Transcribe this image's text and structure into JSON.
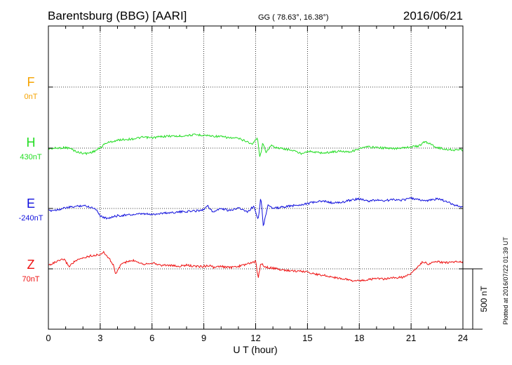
{
  "header": {
    "station": "Barentsburg (BBG)  [AARI]",
    "coords": "GG ( 78.63°,  16.38°)",
    "date": "2016/06/21"
  },
  "footer": {
    "plotted": "Plotted at 2016/07/22 01:39 UT"
  },
  "chart_data": {
    "type": "line",
    "title": "Barentsburg (BBG)  [AARI]",
    "xlabel": "U T (hour)",
    "xlim": [
      0,
      24
    ],
    "xticks": [
      "0",
      "3",
      "6",
      "9",
      "12",
      "15",
      "18",
      "21",
      "24"
    ],
    "grid": true,
    "scale_bar": "500 nT",
    "series": [
      {
        "name": "F",
        "baseline": "0nT",
        "color": "#f5a300",
        "x": [],
        "y": []
      },
      {
        "name": "H",
        "baseline": "430nT",
        "color": "#22dd22",
        "x": [
          0,
          0.5,
          1,
          1.3,
          1.7,
          2.2,
          2.6,
          3.0,
          3.3,
          3.7,
          4.2,
          4.8,
          5.5,
          6.0,
          6.5,
          7.0,
          7.5,
          8.0,
          8.5,
          9.0,
          9.5,
          10.0,
          10.5,
          11.0,
          11.5,
          11.8,
          12.1,
          12.25,
          12.4,
          12.6,
          12.9,
          13.3,
          13.8,
          14.2,
          14.6,
          15.0,
          15.5,
          16.0,
          16.5,
          17.0,
          17.5,
          18.0,
          18.5,
          19.0,
          19.5,
          20.0,
          20.5,
          21.0,
          21.5,
          21.8,
          22.1,
          22.5,
          23.0,
          23.5,
          24.0
        ],
        "y": [
          -5,
          0,
          5,
          -5,
          -35,
          -45,
          -30,
          0,
          40,
          55,
          70,
          75,
          90,
          85,
          95,
          100,
          98,
          105,
          110,
          108,
          100,
          95,
          85,
          80,
          55,
          30,
          90,
          -80,
          40,
          -30,
          20,
          0,
          -10,
          -20,
          -45,
          -25,
          -35,
          -40,
          -30,
          -25,
          -30,
          -5,
          10,
          5,
          0,
          -5,
          5,
          10,
          20,
          55,
          35,
          5,
          -10,
          -15,
          -15
        ]
      },
      {
        "name": "E",
        "baseline": "-240nT",
        "color": "#1010dd",
        "x": [
          0,
          0.5,
          1,
          1.5,
          2.0,
          2.5,
          2.8,
          3.0,
          3.3,
          3.6,
          4.0,
          4.5,
          5.0,
          5.5,
          6.0,
          6.5,
          7.0,
          7.5,
          8.0,
          8.5,
          9.0,
          9.2,
          9.5,
          10.0,
          10.5,
          11.0,
          11.5,
          11.9,
          12.15,
          12.3,
          12.45,
          12.7,
          13.0,
          13.5,
          14.0,
          14.5,
          15.0,
          15.5,
          16.0,
          16.5,
          17.0,
          17.5,
          18.0,
          18.5,
          19.0,
          19.5,
          20.0,
          20.5,
          21.0,
          21.5,
          22.0,
          22.5,
          23.0,
          23.5,
          24.0
        ],
        "y": [
          -20,
          -10,
          5,
          15,
          25,
          10,
          -10,
          -60,
          -80,
          -75,
          -60,
          -55,
          -50,
          -45,
          -50,
          -40,
          -35,
          -30,
          -25,
          -20,
          -10,
          30,
          -30,
          0,
          -20,
          10,
          -30,
          20,
          -90,
          100,
          -150,
          30,
          0,
          10,
          20,
          30,
          40,
          55,
          60,
          45,
          50,
          70,
          80,
          60,
          70,
          65,
          75,
          70,
          85,
          70,
          65,
          80,
          60,
          30,
          10
        ]
      },
      {
        "name": "Z",
        "baseline": "70nT",
        "color": "#ee1111",
        "x": [
          0,
          0.5,
          0.9,
          1.2,
          1.5,
          2.0,
          2.5,
          2.9,
          3.2,
          3.5,
          3.8,
          3.9,
          4.2,
          4.6,
          5.0,
          5.5,
          6.0,
          6.5,
          7.0,
          7.5,
          8.0,
          8.5,
          9.0,
          9.3,
          9.6,
          10.0,
          10.5,
          11.0,
          11.5,
          12.0,
          12.15,
          12.3,
          12.5,
          12.8,
          13.2,
          13.6,
          14.0,
          14.5,
          15.0,
          15.5,
          16.0,
          16.5,
          17.0,
          17.5,
          18.0,
          18.5,
          19.0,
          19.5,
          20.0,
          20.5,
          21.0,
          21.4,
          21.7,
          22.0,
          22.5,
          23.0,
          23.5,
          24.0
        ],
        "y": [
          30,
          60,
          80,
          20,
          60,
          90,
          110,
          115,
          135,
          90,
          20,
          -50,
          40,
          60,
          70,
          40,
          50,
          30,
          30,
          20,
          30,
          20,
          20,
          30,
          10,
          20,
          10,
          20,
          40,
          60,
          -80,
          50,
          20,
          10,
          0,
          -10,
          -15,
          -20,
          -25,
          -45,
          -55,
          -70,
          -80,
          -95,
          -100,
          -90,
          -80,
          -85,
          -75,
          -70,
          -40,
          20,
          60,
          40,
          60,
          50,
          60,
          55
        ]
      }
    ]
  }
}
